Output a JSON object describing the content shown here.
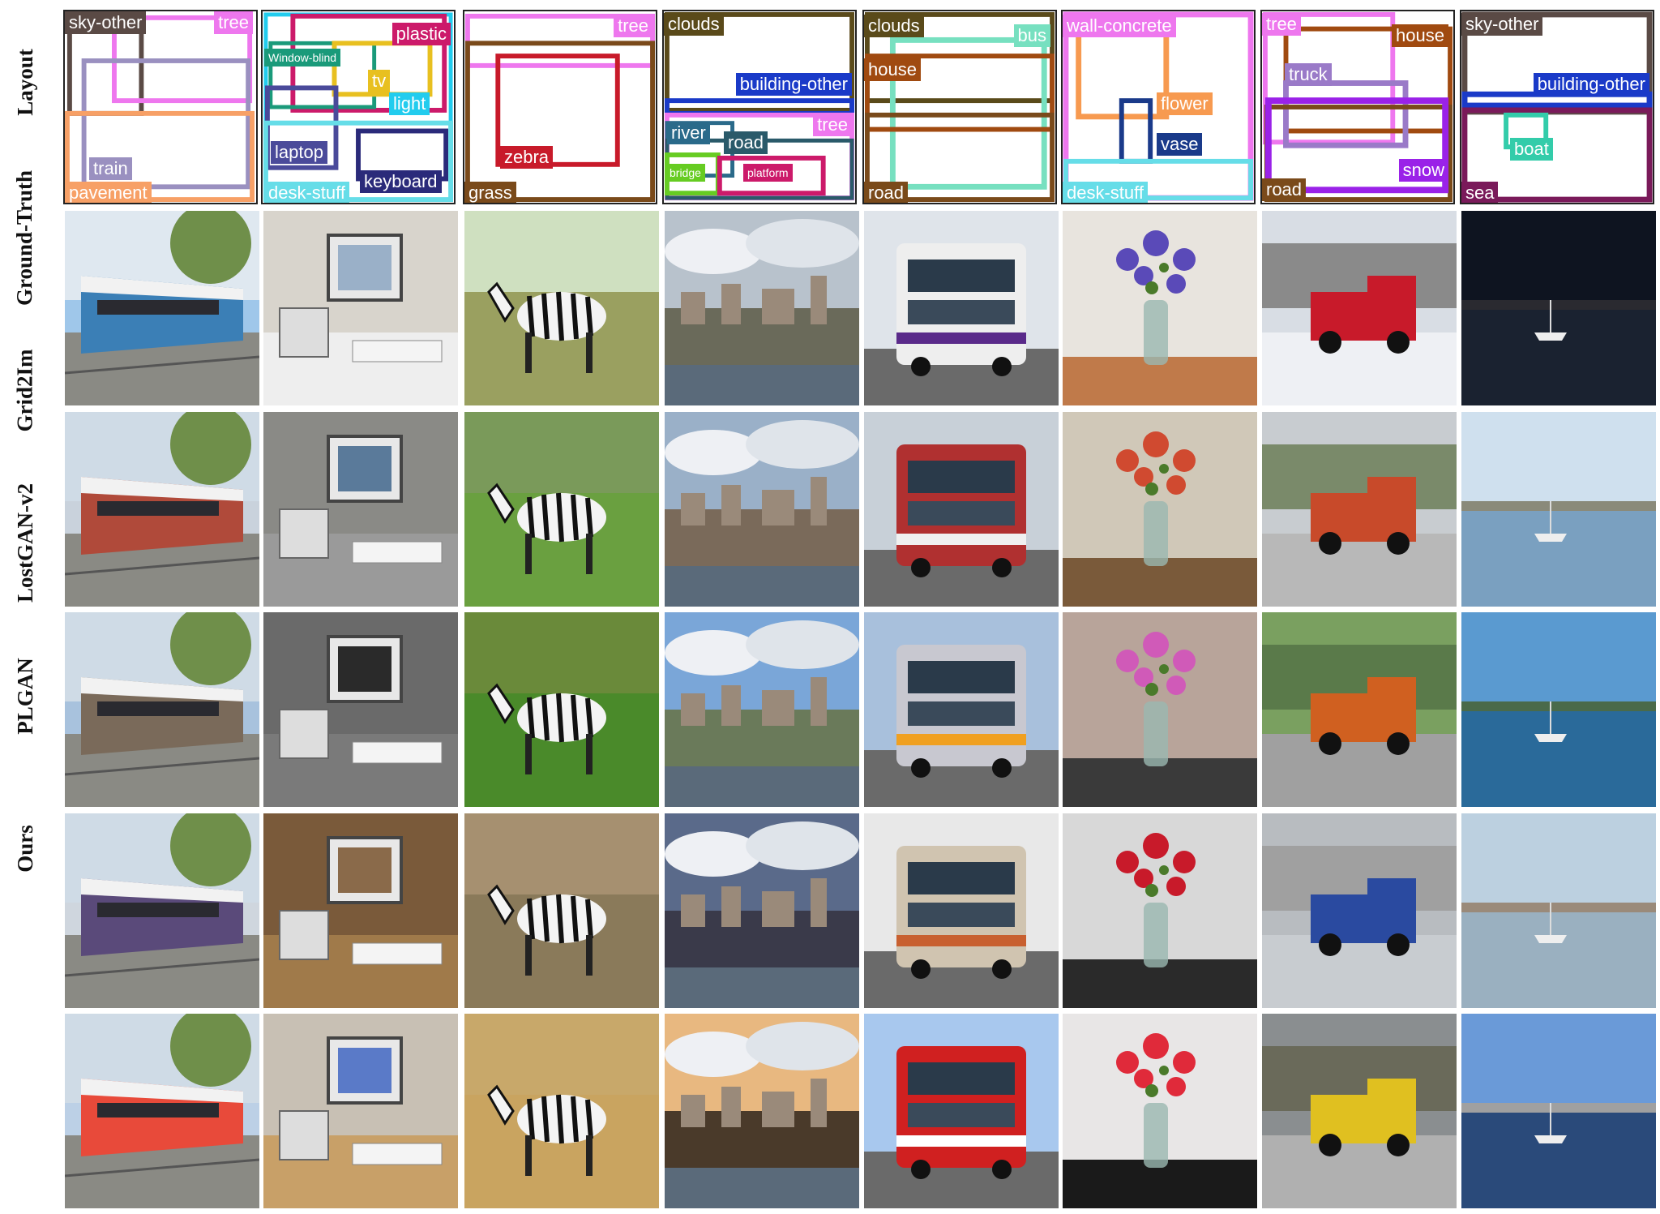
{
  "row_labels": [
    "Layout",
    "Ground-Truth",
    "Grid2Im",
    "LostGAN-v2",
    "PLGAN",
    "Ours"
  ],
  "colors": {
    "sky_other": "#5a4a45",
    "tree": "#ee77ee",
    "train": "#9a90c0",
    "pavement": "#f7a066",
    "window_blind": "#1a9a7a",
    "plastic": "#cc1a6a",
    "tv": "#e8c020",
    "light": "#22ccee",
    "laptop": "#4a4a9a",
    "keyboard": "#2a2a7a",
    "desk_stuff": "#66dde8",
    "zebra": "#c81a2a",
    "grass": "#7a4a1a",
    "clouds": "#5a4a1a",
    "building_other": "#1a3ac8",
    "river": "#2a6a8a",
    "road": "#2a5a6a",
    "bridge": "#66cc22",
    "platform": "#cc1a6a",
    "bus": "#77e0c0",
    "house": "#a04a10",
    "wall_concrete": "#ee77ee",
    "flower": "#f79a50",
    "vase": "#1a3a8a",
    "truck": "#9a7ac8",
    "snow": "#9a22e8",
    "sea": "#7a1a5a",
    "boat": "#33ccaa"
  },
  "layouts": [
    {
      "labels": [
        "sky-other",
        "tree",
        "train",
        "pavement"
      ]
    },
    {
      "labels": [
        "plastic",
        "Window-blind",
        "tv",
        "light",
        "laptop",
        "keyboard",
        "desk-stuff"
      ]
    },
    {
      "labels": [
        "tree",
        "zebra",
        "grass"
      ]
    },
    {
      "labels": [
        "clouds",
        "building-other",
        "tree",
        "river",
        "road",
        "bridge",
        "platform"
      ]
    },
    {
      "labels": [
        "clouds",
        "bus",
        "house",
        "road"
      ]
    },
    {
      "labels": [
        "wall-concrete",
        "flower",
        "vase",
        "desk-stuff"
      ]
    },
    {
      "labels": [
        "tree",
        "house",
        "truck",
        "road",
        "snow"
      ]
    },
    {
      "labels": [
        "sky-other",
        "building-other",
        "boat",
        "sea"
      ]
    }
  ],
  "scenes": [
    "train",
    "desk",
    "zebra",
    "city",
    "bus",
    "vase",
    "truck",
    "sea"
  ]
}
